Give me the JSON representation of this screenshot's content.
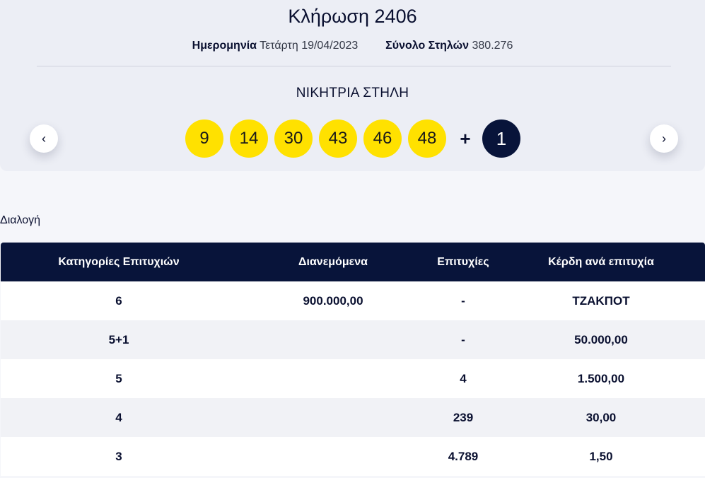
{
  "draw": {
    "title": "Κλήρωση 2406",
    "date_label": "Ημερομηνία",
    "date_value": "Τετάρτη 19/04/2023",
    "columns_label": "Σύνολο Στηλών",
    "columns_value": "380.276",
    "winning_label": "ΝΙΚΗΤΡΙΑ ΣΤΗΛΗ",
    "numbers": [
      "9",
      "14",
      "30",
      "43",
      "46",
      "48"
    ],
    "plus": "+",
    "joker": "1",
    "prev_icon": "‹",
    "next_icon": "›"
  },
  "breakdown": {
    "label": "Διαλογή",
    "headers": [
      "Κατηγορίες Επιτυχιών",
      "Διανεμόμενα",
      "Επιτυχίες",
      "Κέρδη ανά επιτυχία"
    ],
    "rows": [
      [
        "6",
        "900.000,00",
        "-",
        "ΤΖΑΚΠΟΤ"
      ],
      [
        "5+1",
        "",
        "-",
        "50.000,00"
      ],
      [
        "5",
        "",
        "4",
        "1.500,00"
      ],
      [
        "4",
        "",
        "239",
        "30,00"
      ],
      [
        "3",
        "",
        "4.789",
        "1,50"
      ]
    ]
  },
  "colors": {
    "ball": "#ffe100",
    "joker": "#08143a",
    "header": "#08143a"
  }
}
